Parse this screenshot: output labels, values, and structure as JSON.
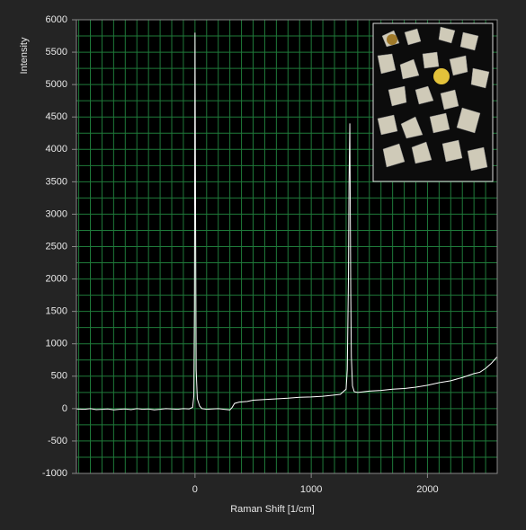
{
  "chart_data": {
    "type": "line",
    "x_label": "Raman Shift  [1/cm]",
    "y_label": "Intensity",
    "xlim": [
      -1020,
      2600
    ],
    "ylim": [
      -1000,
      6000
    ],
    "xticks": [
      0,
      1000,
      2000
    ],
    "yticks": [
      -1000,
      -500,
      0,
      500,
      1000,
      1500,
      2000,
      2500,
      3000,
      3500,
      4000,
      4500,
      5000,
      5500,
      6000
    ],
    "grid": true,
    "xgrid": [
      -1000,
      -900,
      -800,
      -700,
      -600,
      -500,
      -400,
      -300,
      -200,
      -100,
      0,
      100,
      200,
      300,
      400,
      500,
      600,
      700,
      800,
      900,
      1000,
      1100,
      1200,
      1300,
      1400,
      1500,
      1600,
      1700,
      1800,
      1900,
      2000,
      2100,
      2200,
      2300,
      2400,
      2500
    ],
    "ygrid": [
      -1000,
      -750,
      -500,
      -250,
      0,
      250,
      500,
      750,
      1000,
      1250,
      1500,
      1750,
      2000,
      2250,
      2500,
      2750,
      3000,
      3250,
      3500,
      3750,
      4000,
      4250,
      4500,
      4750,
      5000,
      5250,
      5500,
      5750,
      6000
    ],
    "grid_color": "#1f7a3a",
    "series": [
      {
        "color": "#ffffff",
        "x": [
          -1020,
          -950,
          -900,
          -850,
          -800,
          -750,
          -700,
          -650,
          -600,
          -550,
          -500,
          -450,
          -400,
          -350,
          -300,
          -250,
          -200,
          -150,
          -100,
          -50,
          -20,
          -10,
          -5,
          0,
          5,
          10,
          20,
          40,
          60,
          100,
          150,
          200,
          250,
          300,
          320,
          340,
          380,
          450,
          500,
          600,
          700,
          800,
          900,
          1000,
          1100,
          1200,
          1250,
          1300,
          1310,
          1320,
          1325,
          1332,
          1340,
          1345,
          1355,
          1370,
          1400,
          1450,
          1500,
          1600,
          1700,
          1800,
          1900,
          2000,
          2100,
          2200,
          2300,
          2400,
          2450,
          2500,
          2550,
          2600
        ],
        "values": [
          -5,
          -10,
          0,
          -15,
          -10,
          -5,
          -20,
          -10,
          -5,
          -15,
          0,
          -10,
          -5,
          -20,
          -10,
          0,
          -5,
          -10,
          0,
          -5,
          20,
          200,
          1500,
          5800,
          3000,
          600,
          150,
          40,
          0,
          -10,
          -5,
          0,
          -10,
          -20,
          20,
          80,
          100,
          110,
          130,
          140,
          150,
          160,
          175,
          180,
          190,
          210,
          220,
          300,
          600,
          2000,
          3500,
          4400,
          1800,
          800,
          350,
          260,
          250,
          260,
          270,
          280,
          300,
          310,
          330,
          360,
          400,
          430,
          480,
          540,
          560,
          620,
          700,
          800
        ]
      }
    ]
  }
}
